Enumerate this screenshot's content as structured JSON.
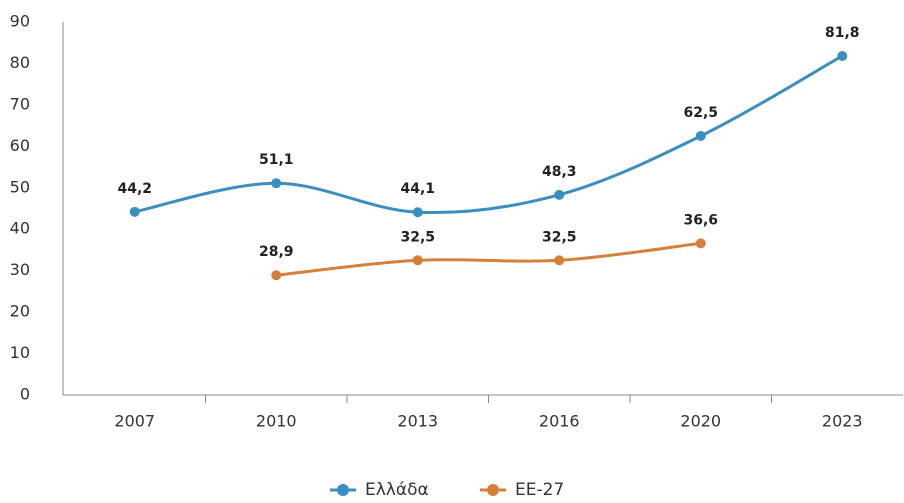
{
  "chart_data": {
    "type": "line",
    "categories": [
      "2007",
      "2010",
      "2013",
      "2016",
      "2020",
      "2023"
    ],
    "series": [
      {
        "name": "Ελλάδα",
        "color": "#3a8fc0",
        "values": [
          44.2,
          51.1,
          44.1,
          48.3,
          62.5,
          81.8
        ],
        "value_labels": [
          "44,2",
          "51,1",
          "44,1",
          "48,3",
          "62,5",
          "81,8"
        ]
      },
      {
        "name": "EE-27",
        "color": "#d4803a",
        "values": [
          null,
          28.9,
          32.5,
          32.5,
          36.6,
          null
        ],
        "value_labels": [
          null,
          "28,9",
          "32,5",
          "32,5",
          "36,6",
          null
        ]
      }
    ],
    "ylim": [
      0,
      90
    ],
    "yticks": [
      0,
      10,
      20,
      30,
      40,
      50,
      60,
      70,
      80,
      90
    ],
    "grid": false,
    "legend": "bottom"
  }
}
